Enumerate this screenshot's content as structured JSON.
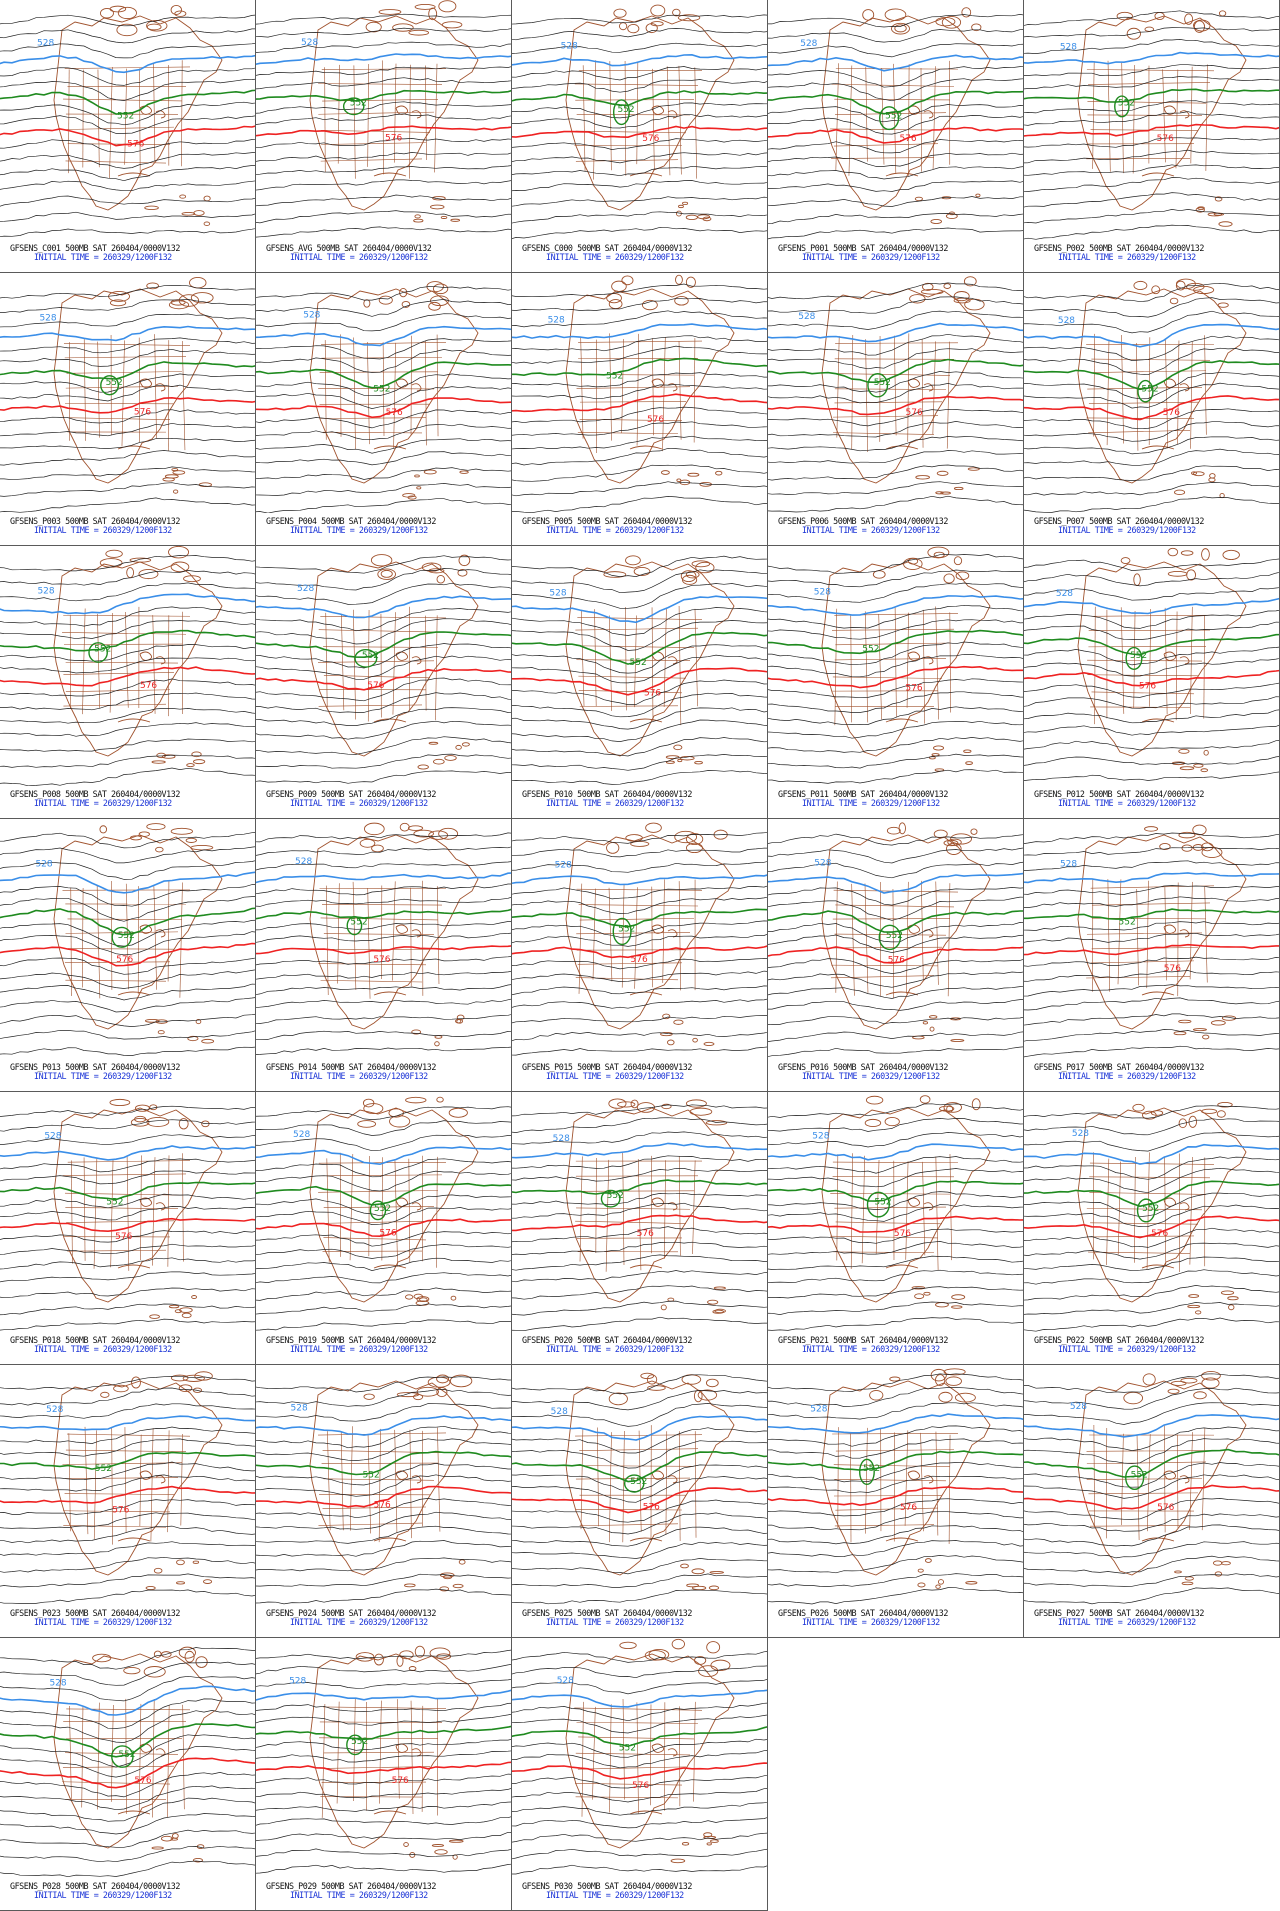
{
  "colors": {
    "background": "#ffffff",
    "border": "#5a5a5a",
    "height_contour": "#222222",
    "contour_528": "#3a8ee8",
    "contour_552": "#1f8a1f",
    "contour_576": "#ee2222",
    "geography": "#a0522d",
    "caption_label": "#111111",
    "caption_time": "#1a33d6"
  },
  "contour_labels": {
    "blue": "528",
    "green": "552",
    "red": "576"
  },
  "panels": [
    {
      "label": "GFSENS_C001 500MB SAT 260404/0000V132",
      "time": "INITIAL TIME = 260329/1200F132"
    },
    {
      "label": "GFSENS_AVG 500MB SAT 260404/0000V132",
      "time": "INITIAL TIME = 260329/1200F132"
    },
    {
      "label": "GFSENS_C000 500MB SAT 260404/0000V132",
      "time": "INITIAL TIME = 260329/1200F132"
    },
    {
      "label": "GFSENS_P001 500MB SAT 260404/0000V132",
      "time": "INITIAL TIME = 260329/1200F132"
    },
    {
      "label": "GFSENS_P002 500MB SAT 260404/0000V132",
      "time": "INITIAL TIME = 260329/1200F132"
    },
    {
      "label": "GFSENS_P003 500MB SAT 260404/0000V132",
      "time": "INITIAL TIME = 260329/1200F132"
    },
    {
      "label": "GFSENS_P004 500MB SAT 260404/0000V132",
      "time": "INITIAL TIME = 260329/1200F132"
    },
    {
      "label": "GFSENS_P005 500MB SAT 260404/0000V132",
      "time": "INITIAL TIME = 260329/1200F132"
    },
    {
      "label": "GFSENS_P006 500MB SAT 260404/0000V132",
      "time": "INITIAL TIME = 260329/1200F132"
    },
    {
      "label": "GFSENS_P007 500MB SAT 260404/0000V132",
      "time": "INITIAL TIME = 260329/1200F132"
    },
    {
      "label": "GFSENS_P008 500MB SAT 260404/0000V132",
      "time": "INITIAL TIME = 260329/1200F132"
    },
    {
      "label": "GFSENS_P009 500MB SAT 260404/0000V132",
      "time": "INITIAL TIME = 260329/1200F132"
    },
    {
      "label": "GFSENS_P010 500MB SAT 260404/0000V132",
      "time": "INITIAL TIME = 260329/1200F132"
    },
    {
      "label": "GFSENS_P011 500MB SAT 260404/0000V132",
      "time": "INITIAL TIME = 260329/1200F132"
    },
    {
      "label": "GFSENS_P012 500MB SAT 260404/0000V132",
      "time": "INITIAL TIME = 260329/1200F132"
    },
    {
      "label": "GFSENS_P013 500MB SAT 260404/0000V132",
      "time": "INITIAL TIME = 260329/1200F132"
    },
    {
      "label": "GFSENS_P014 500MB SAT 260404/0000V132",
      "time": "INITIAL TIME = 260329/1200F132"
    },
    {
      "label": "GFSENS_P015 500MB SAT 260404/0000V132",
      "time": "INITIAL TIME = 260329/1200F132"
    },
    {
      "label": "GFSENS_P016 500MB SAT 260404/0000V132",
      "time": "INITIAL TIME = 260329/1200F132"
    },
    {
      "label": "GFSENS_P017 500MB SAT 260404/0000V132",
      "time": "INITIAL TIME = 260329/1200F132"
    },
    {
      "label": "GFSENS_P018 500MB SAT 260404/0000V132",
      "time": "INITIAL TIME = 260329/1200F132"
    },
    {
      "label": "GFSENS_P019 500MB SAT 260404/0000V132",
      "time": "INITIAL TIME = 260329/1200F132"
    },
    {
      "label": "GFSENS_P020 500MB SAT 260404/0000V132",
      "time": "INITIAL TIME = 260329/1200F132"
    },
    {
      "label": "GFSENS_P021 500MB SAT 260404/0000V132",
      "time": "INITIAL TIME = 260329/1200F132"
    },
    {
      "label": "GFSENS_P022 500MB SAT 260404/0000V132",
      "time": "INITIAL TIME = 260329/1200F132"
    },
    {
      "label": "GFSENS_P023 500MB SAT 260404/0000V132",
      "time": "INITIAL TIME = 260329/1200F132"
    },
    {
      "label": "GFSENS_P024 500MB SAT 260404/0000V132",
      "time": "INITIAL TIME = 260329/1200F132"
    },
    {
      "label": "GFSENS_P025 500MB SAT 260404/0000V132",
      "time": "INITIAL TIME = 260329/1200F132"
    },
    {
      "label": "GFSENS_P026 500MB SAT 260404/0000V132",
      "time": "INITIAL TIME = 260329/1200F132"
    },
    {
      "label": "GFSENS_P027 500MB SAT 260404/0000V132",
      "time": "INITIAL TIME = 260329/1200F132"
    },
    {
      "label": "GFSENS_P028 500MB SAT 260404/0000V132",
      "time": "INITIAL TIME = 260329/1200F132"
    },
    {
      "label": "GFSENS_P029 500MB SAT 260404/0000V132",
      "time": "INITIAL TIME = 260329/1200F132"
    },
    {
      "label": "GFSENS_P030 500MB SAT 260404/0000V132",
      "time": "INITIAL TIME = 260329/1200F132"
    }
  ]
}
